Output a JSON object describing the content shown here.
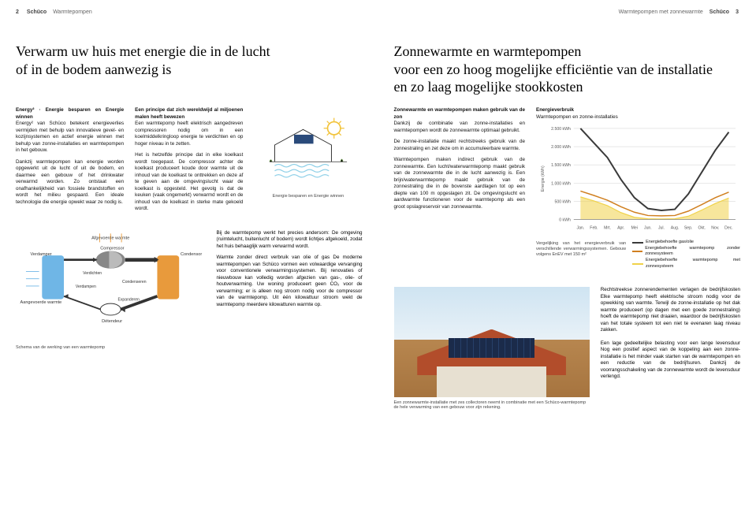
{
  "left": {
    "header": {
      "page": "2",
      "brand": "Schüco",
      "section": "Warmtepompen"
    },
    "headline": "Verwarm uw huis met energie die in de lucht\nof in de bodem aanwezig is",
    "col1": {
      "h": "Energy² · Energie besparen en Energie winnen",
      "p1": "Energy² van Schüco betekent energieverlies vermijden met behulp van innovatieve gevel- en kozijnsystemen en actief energie winnen met behulp van zonne-installaties en warmtepompen in het gebouw.",
      "p2": "Dankzij warmtepompen kan energie worden opgewerkt uit de lucht of uit de bodem, en daarmee een gebouw of het drinkwater verwarmd worden. Zo ontstaat een onafhankelijkheid van fossiele brandstoffen en wordt het milieu gespaard. Een ideale technologie die energie opwekt waar ze nodig is."
    },
    "col2": {
      "h": "Een principe dat zich wereldwijd al miljoenen malen heeft bewezen",
      "p1": "Een warmtepomp heeft elektrisch aangedreven compressoren nodig om in een koelmiddelkringloop energie te verdichten en op hoger niveau in te zetten.",
      "p2": "Het is hetzelfde principe dat in elke koelkast wordt toegepast. De compressor achter de koelkast produceert koude door warmte uit de inhoud van de koelkast te onttrekken en deze af te geven aan de omgevingslucht waar de koelkast is opgesteld. Het gevolg is dat de keuken (vaak ongemerkt) verwarmd wordt en de inhoud van de koelkast in sterke mate gekoeld wordt."
    },
    "sketch_caption": "Energie besparen en Energie winnen",
    "diagram": {
      "labels": {
        "verdamper": "Verdamper",
        "compressor": "Compressor",
        "condensor": "Condensor",
        "afgevoerde": "Afgevoerde warmte",
        "verdichten": "Verdichten",
        "condenseren": "Condenseren",
        "verdampen": "Verdampen",
        "expanderen": "Expanderen",
        "detendeur": "Détendeur",
        "aangevoerde": "Aangevoerde warmte"
      },
      "caption": "Schema van de werking van een warmtepomp",
      "colors": {
        "hot": "#e89a3c",
        "cold": "#6fb6e6",
        "stroke": "#1a1a1a"
      }
    },
    "lower_text": {
      "p1": "Bij de warmtepomp werkt het precies andersom: De omgeving (ruimtelucht, buitenlucht of bodem) wordt lichtjes afgekoeld, zodat het huis behaaglijk warm verwarmd wordt.",
      "h2": "Warmte zonder direct verbruik van olie of gas",
      "p2": "De moderne warmtepompen van Schüco vormen een volwaardige vervanging voor conventionele verwarmingssystemen. Bij renovaties of nieuwbouw kan volledig worden afgezien van gas-, olie- of houtverwarming. Uw woning produceert geen CO₂ voor de verwarming; er is alleen nog stroom nodig voor de compressor van de warmtepomp. Uit één kilowattuur stroom wekt de warmtepomp meerdere kilowatturen warmte op."
    }
  },
  "right": {
    "header": {
      "section": "Warmtepompen met zonnewarmte",
      "brand": "Schüco",
      "page": "3"
    },
    "headline": "Zonnewarmte en warmtepompen\nvoor een zo hoog mogelijke efficiëntie van de installatie\nen zo laag mogelijke stookkosten",
    "col1": {
      "h": "Zonnewarmte en warmtepompen maken gebruik van de zon",
      "p1": "Dankzij de combinatie van zonne-installaties en warmtepompen wordt de zonnewarmte optimaal gebruikt.",
      "p2": "De zonne-installatie maakt rechtstreeks gebruik van de zonnestraling en zet deze om in accumuleerbare warmte.",
      "p3": "Warmtepompen maken indirect gebruik van de zonnewarmte. Een lucht/waterwarmtepomp maakt gebruik van de zonnewarmte die in de lucht aanwezig is. Een brijn/waterwarmtepomp maakt gebruik van de zonnestraling die in de bovenste aardlagen tot op een diepte van 100 m opgeslagen zit. De omgevingslucht en aardwarmte functioneren voor de warmtepomp als een groot opslagreservoir van zonnewarmte."
    },
    "chart": {
      "title": "Energieverbruik",
      "subtitle": "Warmtepompen en zonne-installaties",
      "ylabel": "Energie (kWh)",
      "y_ticks": [
        "2.500 kWh",
        "2.000 kWh",
        "1.500 kWh",
        "1.000 kWh",
        "500 kWh",
        "0 kWh"
      ],
      "y_values": [
        2500,
        2000,
        1500,
        1000,
        500,
        0
      ],
      "months": [
        "Jan.",
        "Feb.",
        "Mrt.",
        "Apr.",
        "Mei",
        "Jun.",
        "Jul.",
        "Aug.",
        "Sep.",
        "Okt.",
        "Nov.",
        "Dec."
      ],
      "series": {
        "gasolie": {
          "label": "Energiebehoefte gas/olie",
          "color": "#3a3a3a",
          "values": [
            2500,
            2100,
            1700,
            1100,
            600,
            300,
            250,
            280,
            700,
            1300,
            1900,
            2400
          ]
        },
        "wp_zonder": {
          "label": "Energiebehoefte warmtepomp zonder zonnesysteem",
          "color": "#d07f1f",
          "values": [
            780,
            660,
            530,
            350,
            200,
            110,
            100,
            110,
            230,
            410,
            600,
            750
          ]
        },
        "wp_met": {
          "label": "Energiebehoefte warmtepomp met zonnesysteem",
          "color": "#f0d24a",
          "values": [
            620,
            510,
            380,
            190,
            60,
            20,
            15,
            20,
            90,
            260,
            440,
            590
          ]
        }
      },
      "caption": "Vergelijking van het energieverbruik van verschillende verwarmingssystemen. Gebouw volgens EnEV met 150 m²",
      "bg": "#ffffff",
      "grid": "#d9d9d9"
    },
    "photo_caption": "Een zonnewarmte-installatie met zes collectoren neemt in combinatie met een Schüco-warmtepomp de hele verwarming van een gebouw voor zijn rekening.",
    "side": {
      "h1": "Rechtstreekse zonnerendementen verlagen de bedrijfskosten",
      "p1": "Elke warmtepomp heeft elektrische stroom nodig voor de opwekking van warmte. Terwijl de zonne-installatie op het dak warmte produceert (op dagen met een goede zonnestraling) hoeft de warmtepomp niet draaien, waardoor de bedrijfskosten van het totale systeem tot een niet te evenaren laag niveau zakken.",
      "h2": "Een lage gedeeltelijke belasting voor een lange levensduur",
      "p2": "Nog een positief aspect van de koppeling aan een zonne-installatie is het minder vaak starten van de warmtepompen en een reductie van de bedrijfsuren. Dankzij de voorrangsschakeling van de zonnewarmte wordt de levensduur verlengd."
    }
  }
}
